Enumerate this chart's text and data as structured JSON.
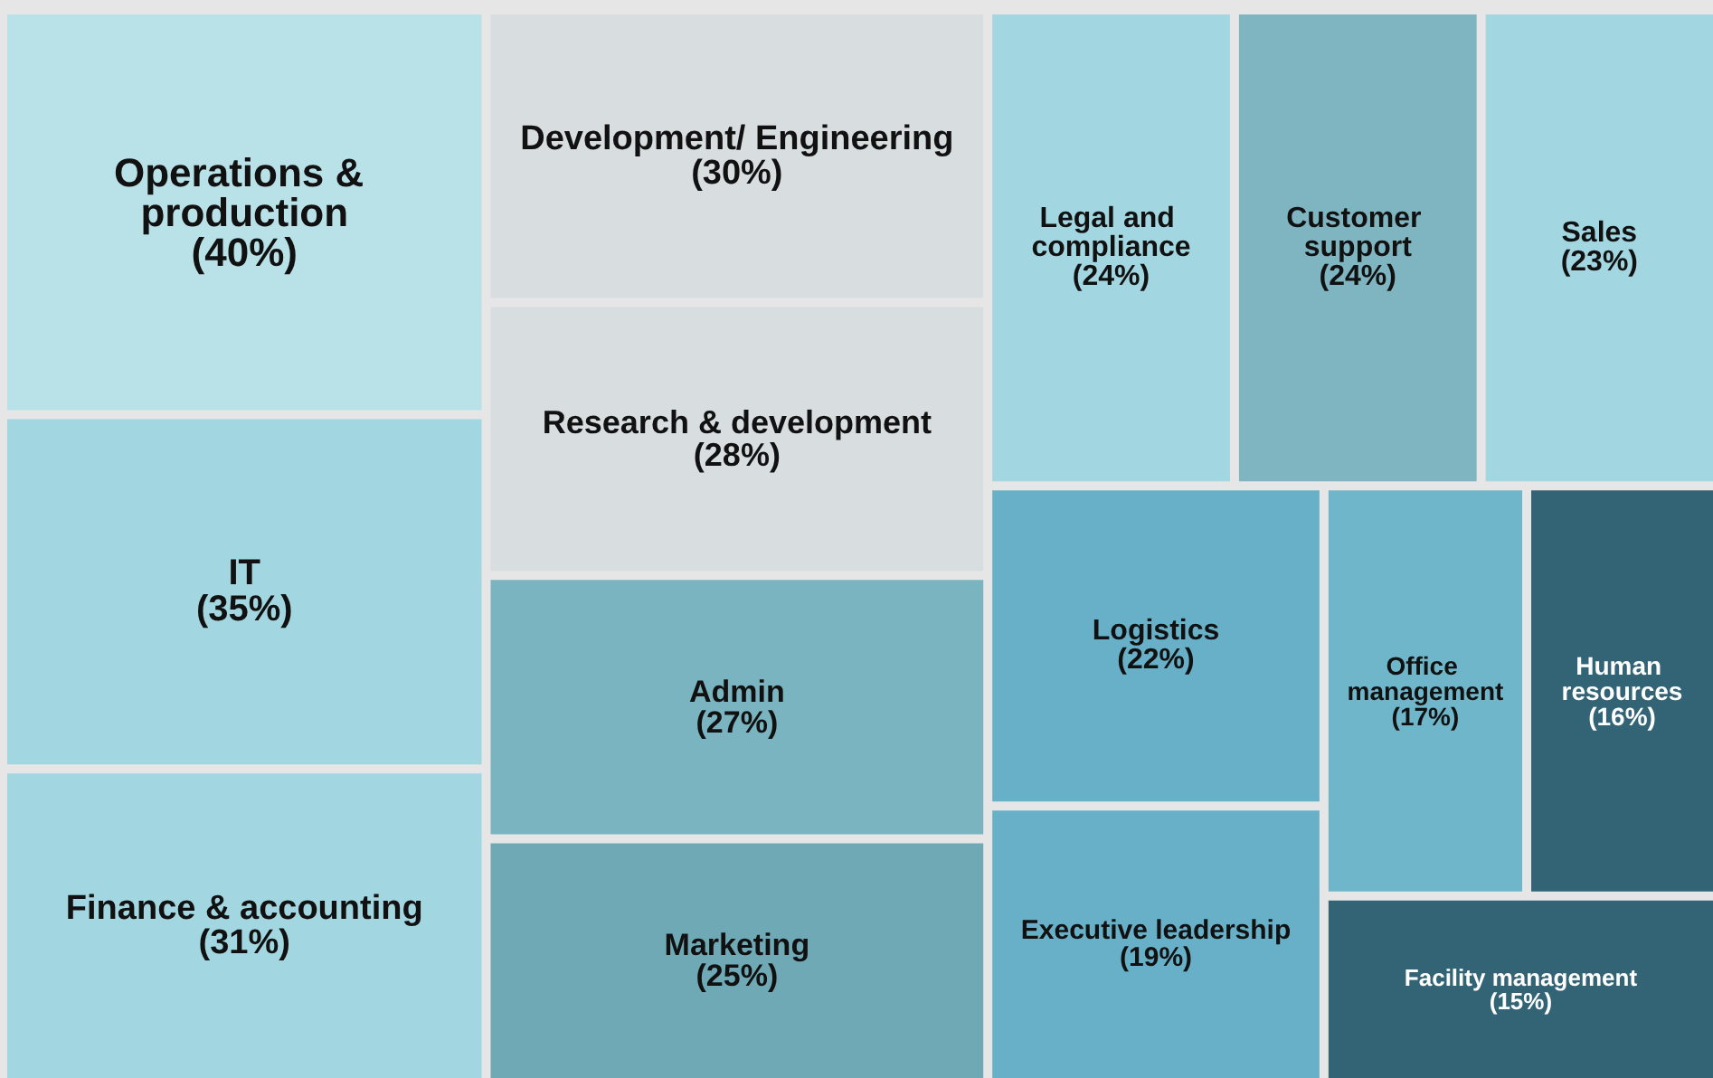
{
  "chart_data": {
    "type": "other",
    "categories": [
      "Operations & production",
      "IT",
      "Finance & accounting",
      "Development/ Engineering",
      "Research & development",
      "Admin",
      "Marketing",
      "Legal and compliance",
      "Customer support",
      "Sales",
      "Logistics",
      "Executive leadership",
      "Office management",
      "Human resources",
      "Facility management"
    ],
    "values": [
      40,
      35,
      31,
      30,
      28,
      27,
      25,
      24,
      24,
      23,
      22,
      19,
      17,
      16,
      15
    ],
    "value_labels": [
      "(40%)",
      "(35%)",
      "(31%)",
      "(30%)",
      "(28%)",
      "(27%)",
      "(25%)",
      "(24%)",
      "(24%)",
      "(23%)",
      "(22%)",
      "(19%)",
      "(17%)",
      "(16%)",
      "(15%)"
    ],
    "colors": [
      "#b9e1e8",
      "#a2d6e0",
      "#a2d6e0",
      "#d8dde0",
      "#d8dde0",
      "#7ab4c0",
      "#6fa9b5",
      "#a2d6e0",
      "#7fb5c1",
      "#a2d6e0",
      "#67b0c8",
      "#67b0c8",
      "#6fb6ca",
      "#326475",
      "#326475"
    ]
  }
}
